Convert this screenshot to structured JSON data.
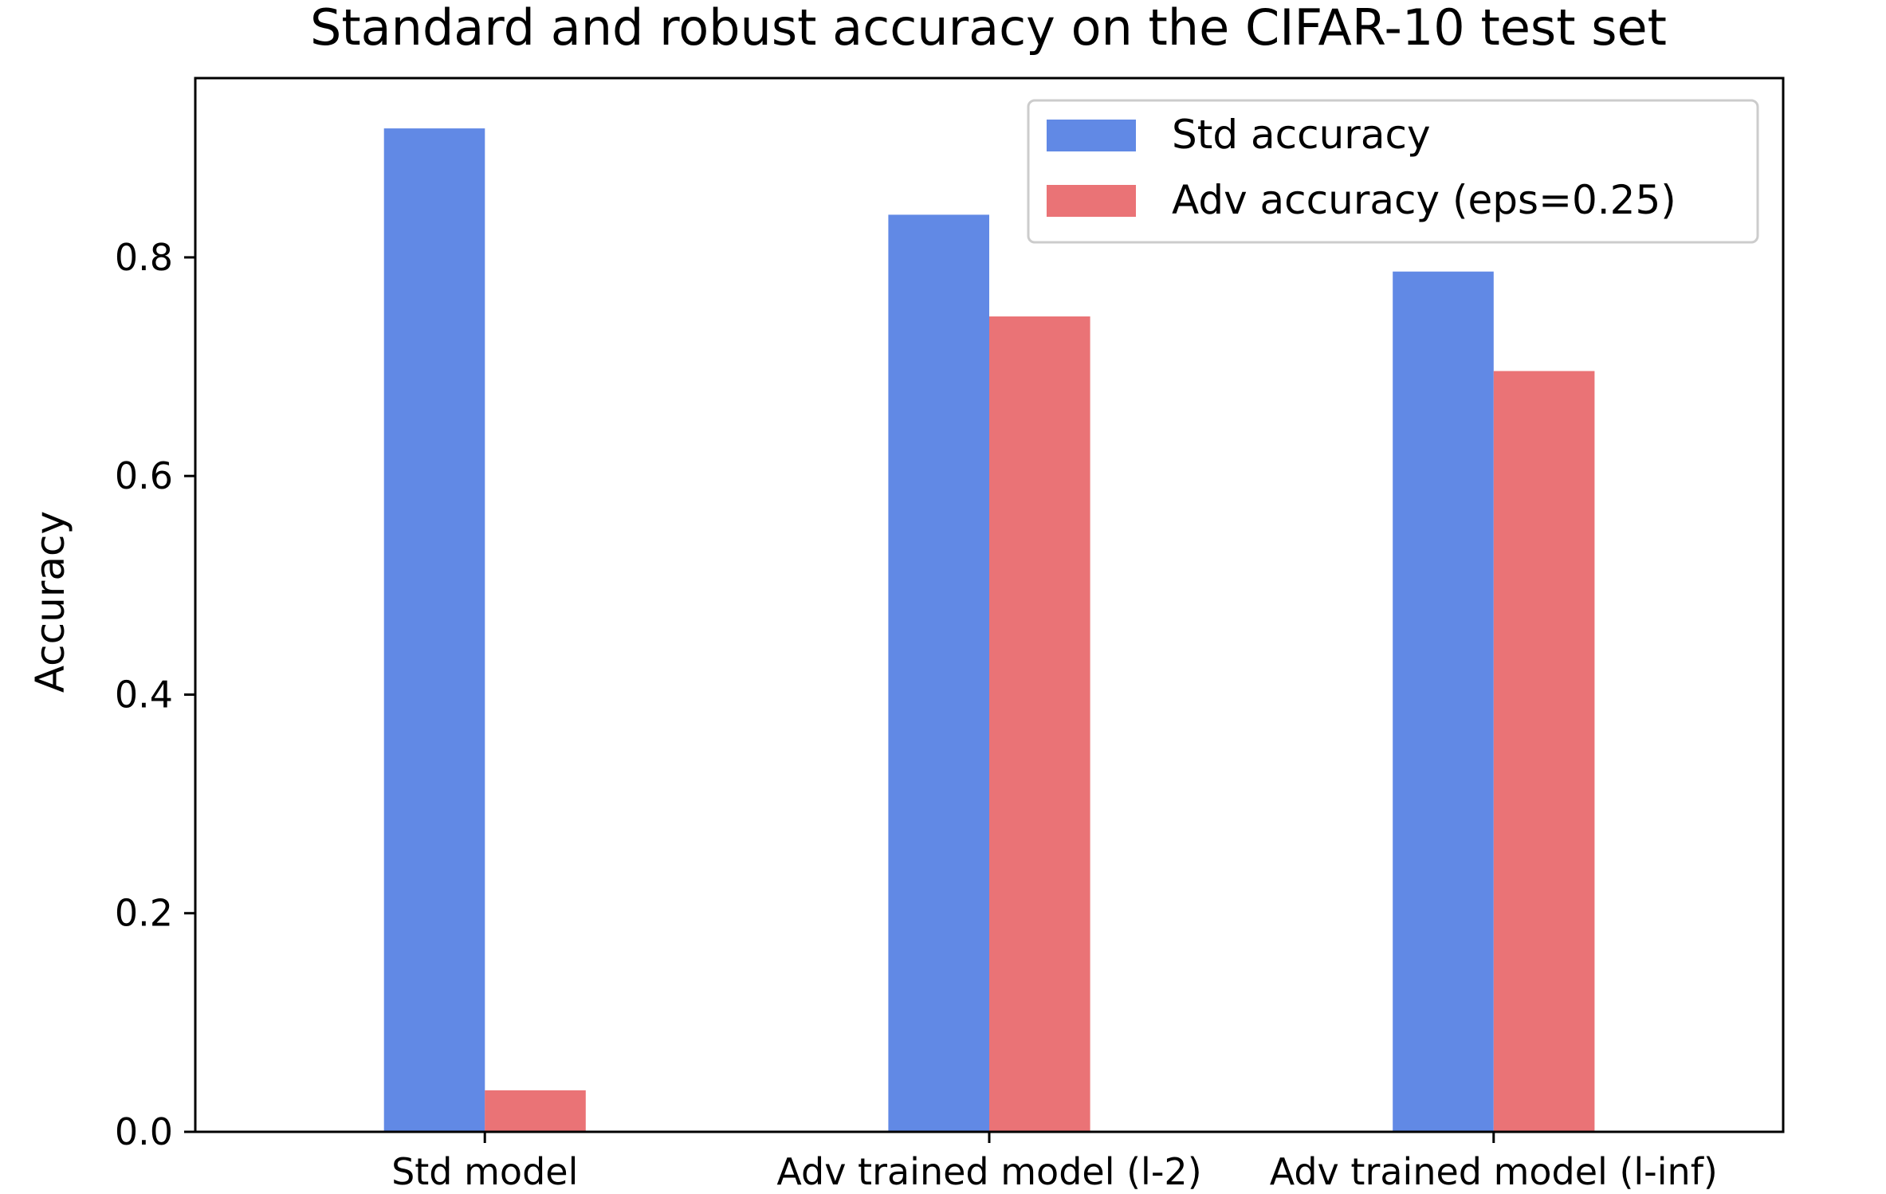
{
  "chart_data": {
    "type": "bar",
    "title": "Standard and robust accuracy on the CIFAR-10 test set",
    "xlabel": "",
    "ylabel": "Accuracy",
    "categories": [
      "Std model",
      "Adv trained model (l-2)",
      "Adv trained model (l-inf)"
    ],
    "series": [
      {
        "name": "Std accuracy",
        "color": "#6189e5",
        "values": [
          0.918,
          0.839,
          0.787
        ]
      },
      {
        "name": "Adv accuracy (eps=0.25)",
        "color": "#ea7376",
        "values": [
          0.038,
          0.746,
          0.696
        ]
      }
    ],
    "ylim": [
      0,
      0.964
    ],
    "yticks": [
      0.0,
      0.2,
      0.4,
      0.6,
      0.8
    ],
    "ytick_labels": [
      "0.0",
      "0.2",
      "0.4",
      "0.6",
      "0.8"
    ],
    "grid": false,
    "legend": "top-right"
  }
}
